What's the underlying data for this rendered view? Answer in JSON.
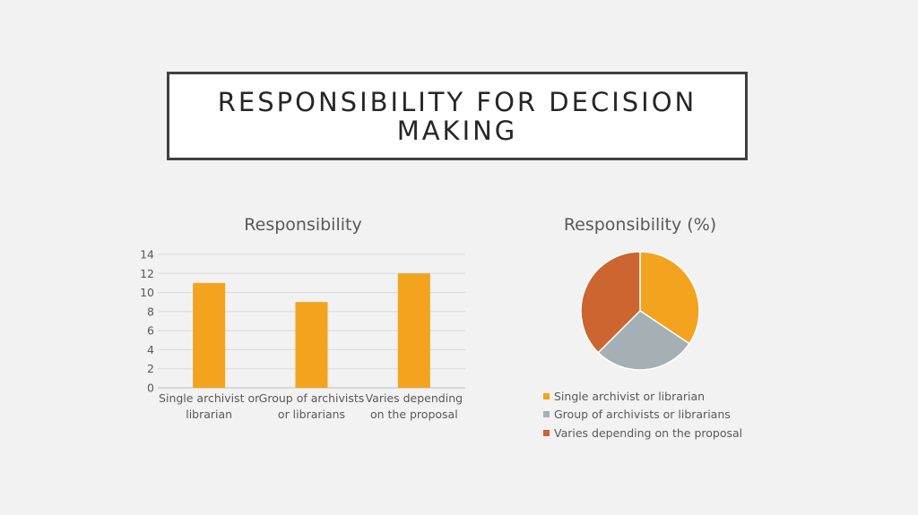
{
  "slide": {
    "title": "RESPONSIBILITY FOR DECISION MAKING"
  },
  "chart_data": [
    {
      "type": "bar",
      "title": "Responsibility",
      "categories": [
        "Single archivist or librarian",
        "Group of archivists or librarians",
        "Varies depending on the proposal"
      ],
      "values": [
        11,
        9,
        12
      ],
      "ylim": [
        0,
        14
      ],
      "yticks": [
        0,
        2,
        4,
        6,
        8,
        10,
        12,
        14
      ],
      "grid": true,
      "color": "#f4a31f"
    },
    {
      "type": "pie",
      "title": "Responsibility (%)",
      "labels": [
        "Single archivist or librarian",
        "Group of archivists or librarians",
        "Varies depending on the proposal"
      ],
      "values": [
        11,
        9,
        12
      ],
      "colors": [
        "#f4a31f",
        "#a5b0b5",
        "#cc6530"
      ],
      "legend": "bottom"
    }
  ]
}
